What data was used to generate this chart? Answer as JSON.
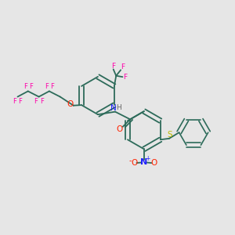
{
  "background_color": "#e6e6e6",
  "bond_color": "#2d6b5a",
  "atom_colors": {
    "F": "#ff00aa",
    "O": "#ff2200",
    "N": "#2222ff",
    "H": "#666666",
    "S": "#bbbb00",
    "C": "#2d6b5a"
  },
  "figsize": [
    3.0,
    3.0
  ],
  "dpi": 100
}
